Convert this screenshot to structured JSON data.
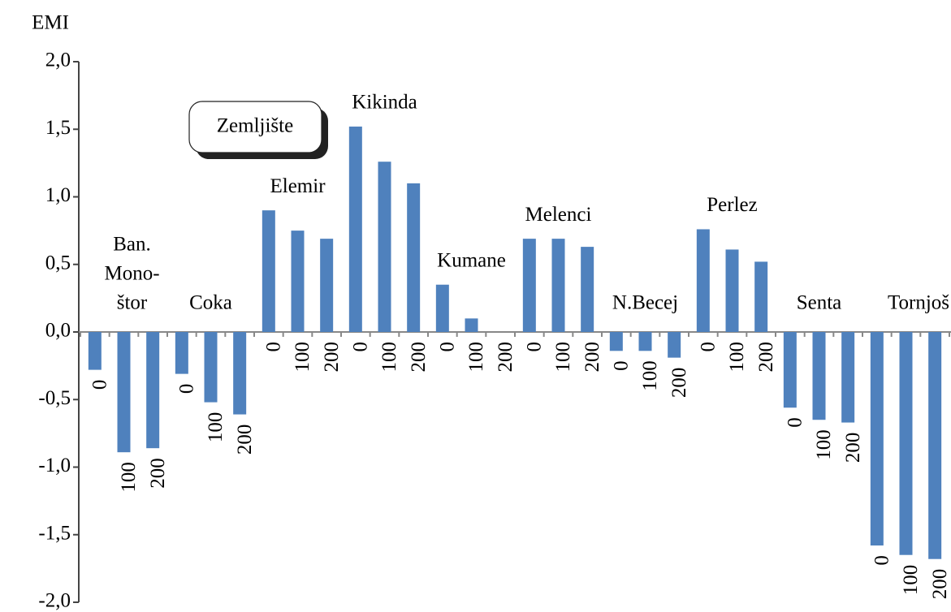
{
  "chart_data": {
    "type": "bar",
    "y_label": "EMI",
    "annotation": "Zemljište",
    "color": "#4f81bd",
    "groups": [
      [
        "Ban.",
        "Mono-",
        "štor"
      ],
      [
        "Coka"
      ],
      [
        "Elemir"
      ],
      [
        "Kikinda"
      ],
      [
        "Kumane"
      ],
      [
        "Melenci"
      ],
      [
        "N.Becej"
      ],
      [
        "Perlez"
      ],
      [
        "Senta"
      ],
      [
        "Tornjoš"
      ]
    ],
    "categories": [
      "0",
      "100",
      "200",
      "0",
      "100",
      "200",
      "0",
      "100",
      "200",
      "0",
      "100",
      "200",
      "0",
      "100",
      "200",
      "0",
      "100",
      "200",
      "0",
      "100",
      "200",
      "0",
      "100",
      "200",
      "0",
      "100",
      "200",
      "0",
      "100",
      "200"
    ],
    "values": [
      -0.28,
      -0.89,
      -0.86,
      -0.31,
      -0.52,
      -0.61,
      0.9,
      0.75,
      0.69,
      1.52,
      1.26,
      1.1,
      0.35,
      0.1,
      0.0,
      0.69,
      0.69,
      0.63,
      -0.14,
      -0.14,
      -0.19,
      0.76,
      0.61,
      0.52,
      -0.56,
      -0.65,
      -0.67,
      -1.58,
      -1.65,
      -1.68
    ],
    "ylim": [
      -2.0,
      2.0
    ],
    "yticks": [
      {
        "value": -2.0,
        "label": "-2,0"
      },
      {
        "value": -1.5,
        "label": "-1,5"
      },
      {
        "value": -1.0,
        "label": "-1,0"
      },
      {
        "value": -0.5,
        "label": "-0,5"
      },
      {
        "value": 0.0,
        "label": "0,0"
      },
      {
        "value": 0.5,
        "label": "0,5"
      },
      {
        "value": 1.0,
        "label": "1,0"
      },
      {
        "value": 1.5,
        "label": "1,5"
      },
      {
        "value": 2.0,
        "label": "2,0"
      }
    ]
  }
}
